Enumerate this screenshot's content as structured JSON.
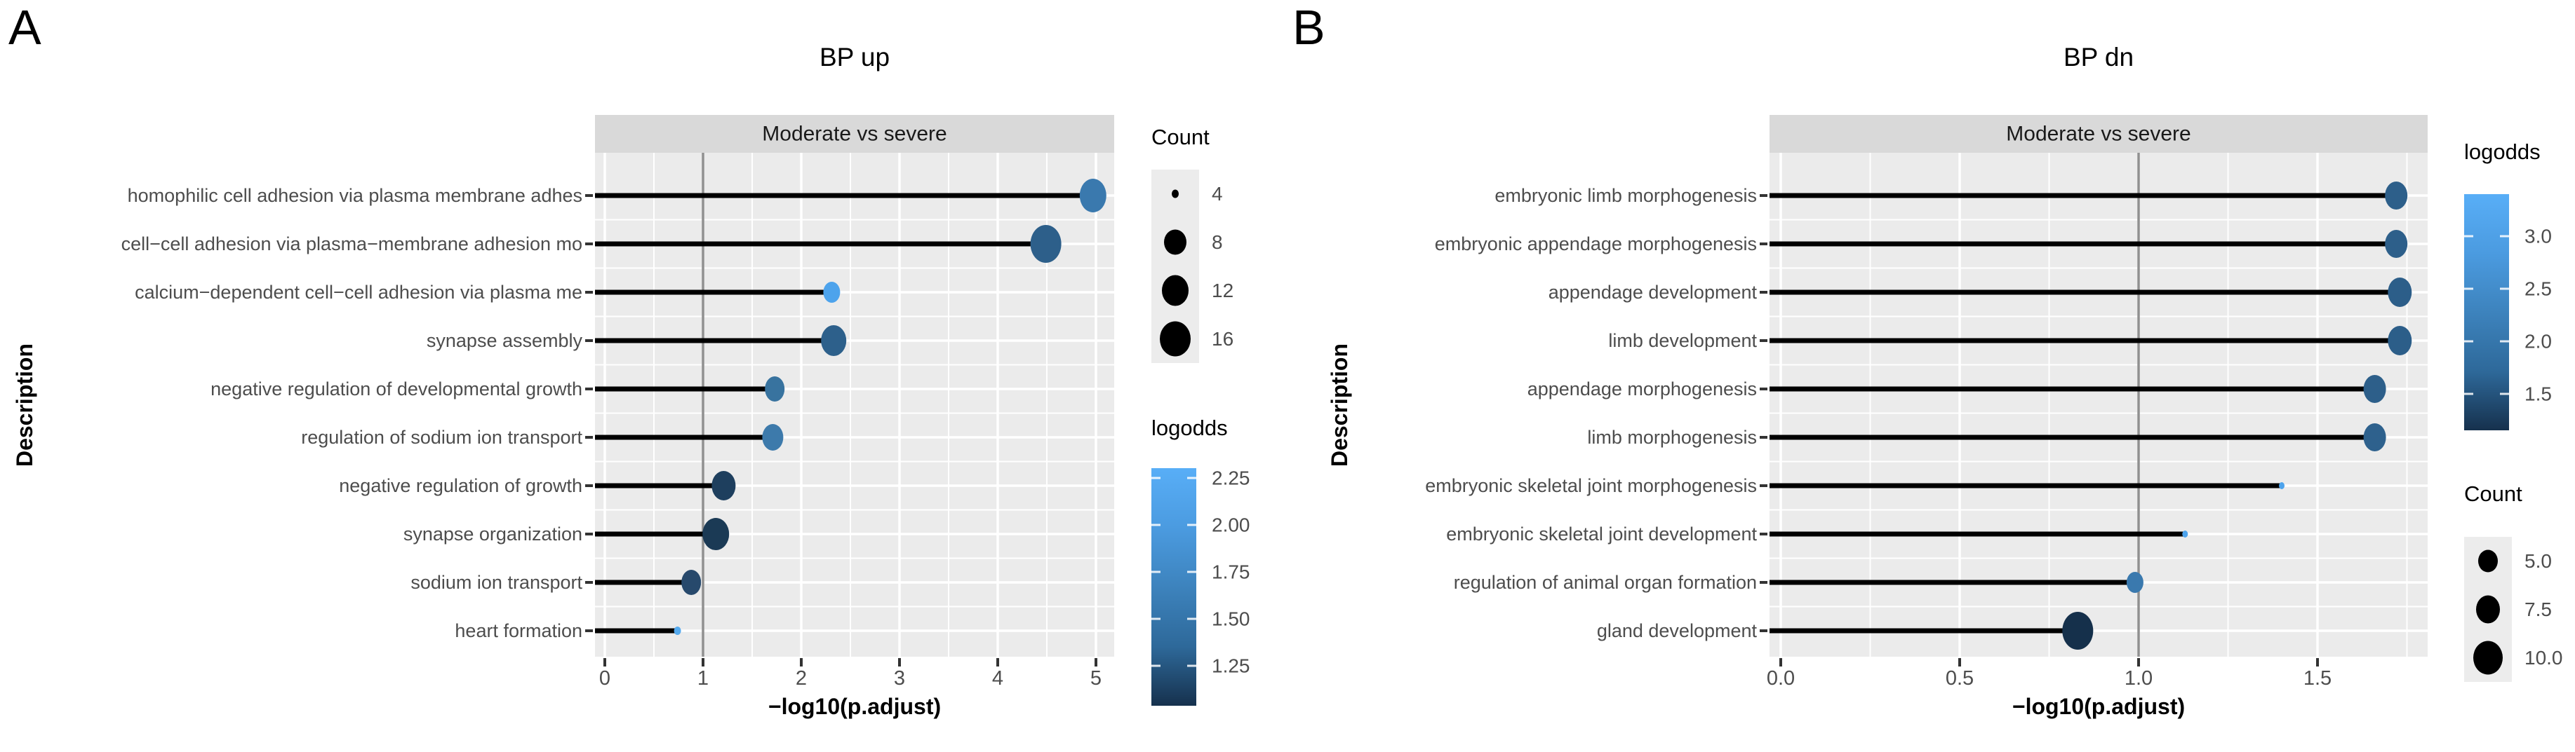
{
  "figure": {
    "panel_a_letter": "A",
    "panel_b_letter": "B"
  },
  "chart_data": [
    {
      "id": "bp-up",
      "type": "scatter",
      "title": "BP up",
      "facet_label": "Moderate vs severe",
      "xlabel": "−log10(p.adjust)",
      "ylabel": "Description",
      "xlim": [
        0,
        5.2
      ],
      "x_ticks": [
        "0",
        "1",
        "2",
        "3",
        "4",
        "5"
      ],
      "x_tick_values": [
        0,
        1,
        2,
        3,
        4,
        5
      ],
      "x_minor_values": [
        0.5,
        1.5,
        2.5,
        3.5,
        4.5
      ],
      "ref_line_x": 1,
      "categories": [
        "homophilic cell adhesion via plasma membrane adhes",
        "cell−cell adhesion via plasma−membrane adhesion mo",
        "calcium−dependent cell−cell adhesion via plasma me",
        "synapse assembly",
        "negative regulation of developmental growth",
        "regulation of sodium ion transport",
        "negative regulation of growth",
        "synapse organization",
        "sodium ion transport",
        "heart formation"
      ],
      "values": [
        4.97,
        4.49,
        2.31,
        2.33,
        1.73,
        1.71,
        1.21,
        1.13,
        0.88,
        0.74
      ],
      "dot_colors": [
        "#3a79ae",
        "#2d5f8a",
        "#4da3ec",
        "#2d608b",
        "#38739f",
        "#3d7aab",
        "#1e3f5e",
        "#1b3a55",
        "#27496c",
        "#55aaee"
      ],
      "dot_rx": [
        19,
        22,
        12,
        18,
        14,
        15,
        17,
        19,
        14,
        5
      ],
      "dot_ry": [
        24,
        27,
        15,
        22,
        18,
        19,
        21,
        23,
        18,
        6
      ],
      "legends": [
        {
          "type": "size",
          "title": "Count",
          "items": [
            {
              "label": "4",
              "r": 5
            },
            {
              "label": "8",
              "r": 16
            },
            {
              "label": "12",
              "r": 19
            },
            {
              "label": "16",
              "r": 22
            }
          ]
        },
        {
          "type": "gradient",
          "title": "logodds",
          "ticks": [
            "2.25",
            "2.00",
            "1.75",
            "1.50",
            "1.25"
          ],
          "colors": [
            "#58aef7",
            "#4b9be0",
            "#3d83bd",
            "#2e699a",
            "#16314d"
          ]
        }
      ]
    },
    {
      "id": "bp-dn",
      "type": "scatter",
      "title": "BP dn",
      "facet_label": "Moderate vs severe",
      "xlabel": "−log10(p.adjust)",
      "ylabel": "Description",
      "xlim": [
        0,
        1.8
      ],
      "x_ticks": [
        "0.0",
        "0.5",
        "1.0",
        "1.5"
      ],
      "x_tick_values": [
        0,
        0.5,
        1,
        1.5
      ],
      "x_minor_values": [
        0.25,
        0.75,
        1.25,
        1.75
      ],
      "ref_line_x": 1,
      "categories": [
        "embryonic limb morphogenesis",
        "embryonic appendage morphogenesis",
        "appendage development",
        "limb development",
        "appendage morphogenesis",
        "limb morphogenesis",
        "embryonic skeletal joint morphogenesis",
        "embryonic skeletal joint development",
        "regulation of animal organ formation",
        "gland development"
      ],
      "values": [
        1.72,
        1.72,
        1.73,
        1.73,
        1.66,
        1.66,
        1.4,
        1.13,
        0.99,
        0.83
      ],
      "dot_colors": [
        "#2d5f8a",
        "#2d5f8a",
        "#2c5e89",
        "#2c5e89",
        "#2d5f8a",
        "#2e618d",
        "#4da3ec",
        "#4da3ec",
        "#3a79ae",
        "#15304b"
      ],
      "dot_rx": [
        16,
        16,
        17,
        17,
        16,
        16,
        4,
        4,
        12,
        22
      ],
      "dot_ry": [
        20,
        20,
        21,
        21,
        20,
        20,
        5,
        5,
        15,
        27
      ],
      "legends": [
        {
          "type": "gradient",
          "title": "logodds",
          "ticks": [
            "3.0",
            "2.5",
            "2.0",
            "1.5"
          ],
          "colors": [
            "#58aef7",
            "#4b9be0",
            "#3d83bd",
            "#2e699a",
            "#16314d"
          ]
        },
        {
          "type": "size",
          "title": "Count",
          "items": [
            {
              "label": "5.0",
              "r": 14
            },
            {
              "label": "7.5",
              "r": 17
            },
            {
              "label": "10.0",
              "r": 21
            }
          ]
        }
      ]
    }
  ],
  "style_colors": {
    "panel_bg": "#ebebeb",
    "strip_bg": "#d9d9d9",
    "gridline": "#ffffff",
    "ref_line": "#909090",
    "stem": "#000000",
    "legend_key_bg": "#ececec"
  }
}
